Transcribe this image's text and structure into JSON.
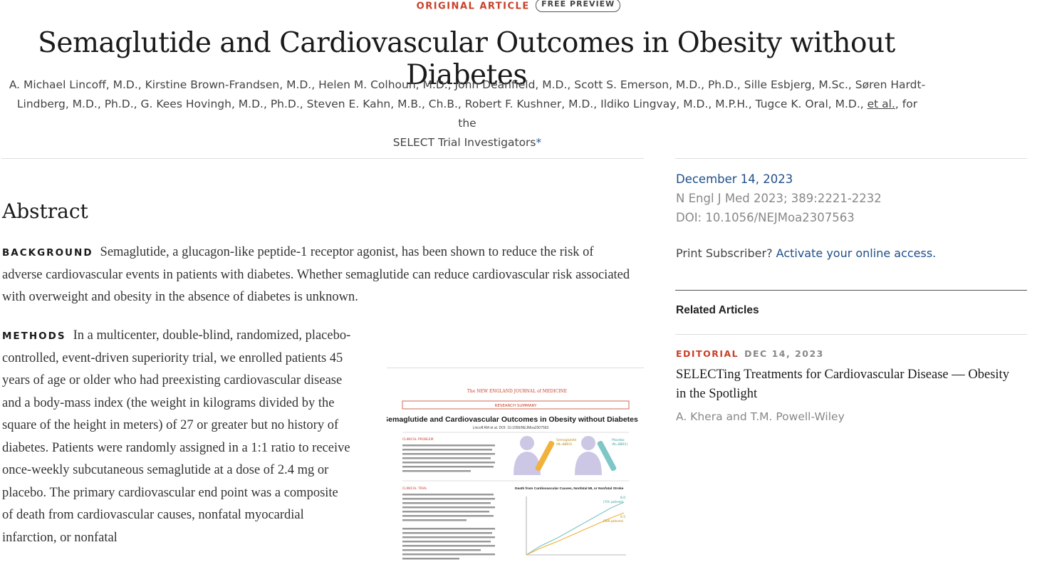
{
  "header": {
    "article_type": "ORIGINAL ARTICLE",
    "badge": "FREE PREVIEW",
    "title": "Semaglutide and Cardiovascular Outcomes in Obesity without Diabetes",
    "authors_line1": "A. Michael Lincoff, M.D., Kirstine Brown-Frandsen, M.D., Helen M. Colhoun, M.D., John Deanfield, M.D., Scott S. Emerson, M.D., Ph.D., Sille Esbjerg, M.Sc., Søren Hardt-",
    "authors_line2": "Lindberg, M.D., Ph.D., G. Kees Hovingh, M.D., Ph.D., Steven E. Kahn, M.B., Ch.B., Robert F. Kushner, M.D., Ildiko Lingvay, M.D., M.P.H., Tugce K. Oral, M.D., ",
    "etal": "et al.",
    "authors_after_etal": ", for the",
    "authors_line3": "SELECT Trial Investigators",
    "asterisk": "*"
  },
  "abstract": {
    "heading": "Abstract",
    "background_label": "BACKGROUND",
    "background_text": "Semaglutide, a glucagon-like peptide-1 receptor agonist, has been shown to reduce the risk of adverse cardiovascular events in patients with diabetes. Whether semaglutide can reduce cardiovascular risk associated with overweight and obesity in the absence of diabetes is unknown.",
    "methods_label": "METHODS",
    "methods_text": "In a multicenter, double-blind, randomized, placebo-controlled, event-driven superiority trial, we enrolled patients 45 years of age or older who had preexisting cardiovascular disease and a body-mass index (the weight in kilograms divided by the square of the height in meters) of 27 or greater but no history of diabetes. Patients were randomly assigned in a 1:1 ratio to receive once-weekly subcutaneous semaglutide at a dose of 2.4 mg or placebo. The primary cardiovascular end point was a composite of death from cardiovascular causes, nonfatal myocardial infarction, or nonfatal"
  },
  "summary_figure": {
    "journal": "The NEW ENGLAND JOURNAL of MEDICINE",
    "section": "RESEARCH SUMMARY",
    "title": "Semaglutide and Cardiovascular Outcomes in Obesity without Diabetes",
    "byline": "Lincoff AM et al.   DOI: 10.1056/NEJMoa2307563",
    "problem_label": "CLINICAL PROBLEM",
    "trial_label": "CLINICAL TRIAL",
    "sema_label": "Semaglutide",
    "sema_n": "(N=8803)",
    "placebo_label": "Placebo",
    "placebo_n": "(N=8801)",
    "chart_title": "Death from Cardiovascular Causes, Nonfatal MI, or Nonfatal Stroke",
    "placebo_value": "8.0",
    "placebo_patients": "(701 patients)",
    "sema_value": "6.5",
    "sema_patients": "(569 patients)"
  },
  "sidebar": {
    "date": "December 14, 2023",
    "citation": "N Engl J Med 2023; 389:2221-2232",
    "doi": "DOI: 10.1056/NEJMoa2307563",
    "print_prefix": "Print Subscriber? ",
    "print_link": "Activate your online access.",
    "related_heading": "Related Articles",
    "related": {
      "kind": "EDITORIAL",
      "date": "DEC 14, 2023",
      "title": "SELECTing Treatments for Cardiovascular Disease — Obesity in the Spotlight",
      "authors": "A. Khera and T.M. Powell-Wiley"
    }
  },
  "colors": {
    "accent": "#c8412a",
    "link": "#1f4e89",
    "semaglutide_line": "#f0b23a",
    "placebo_line": "#7fc6c6"
  }
}
